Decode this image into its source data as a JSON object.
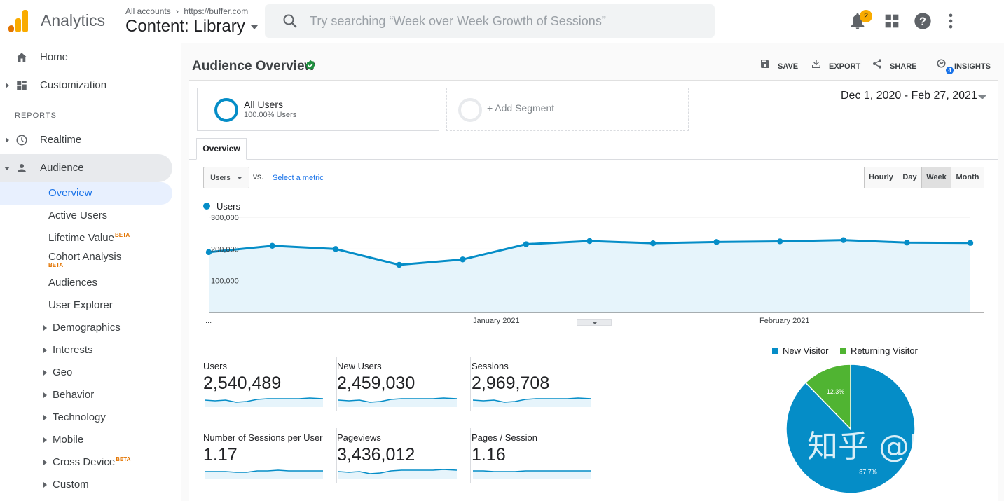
{
  "app": {
    "name": "Analytics",
    "account_crumb": "All accounts",
    "property_crumb": "https://buffer.com",
    "view_title": "Content: Library"
  },
  "search": {
    "placeholder": "Try searching “Week over Week Growth of Sessions”"
  },
  "topbar": {
    "notification_count": "2"
  },
  "sidebar": {
    "home": "Home",
    "customization": "Customization",
    "reports_header": "REPORTS",
    "realtime": "Realtime",
    "audience": "Audience",
    "audience_items": [
      {
        "label": "Overview"
      },
      {
        "label": "Active Users"
      },
      {
        "label": "Lifetime Value",
        "badge": "BETA"
      },
      {
        "label": "Cohort Analysis",
        "badge": "BETA"
      },
      {
        "label": "Audiences"
      },
      {
        "label": "User Explorer"
      },
      {
        "label": "Demographics"
      },
      {
        "label": "Interests"
      },
      {
        "label": "Geo"
      },
      {
        "label": "Behavior"
      },
      {
        "label": "Technology"
      },
      {
        "label": "Mobile"
      },
      {
        "label": "Cross Device",
        "badge": "BETA"
      },
      {
        "label": "Custom"
      }
    ]
  },
  "header": {
    "title": "Audience Overview",
    "save": "SAVE",
    "export": "EXPORT",
    "share": "SHARE",
    "insights": "INSIGHTS",
    "insights_count": "4"
  },
  "segments": {
    "all_users": "All Users",
    "all_users_pct": "100.00% Users",
    "add_segment": "+ Add Segment"
  },
  "date_range": "Dec 1, 2020 - Feb 27, 2021",
  "tabs": {
    "overview": "Overview"
  },
  "controls": {
    "metric": "Users",
    "vs": "vs.",
    "select_metric": "Select a metric",
    "granularity": [
      "Hourly",
      "Day",
      "Week",
      "Month"
    ],
    "selected_granularity": "Week"
  },
  "colors": {
    "series": "#058dc7",
    "fill": "#e6f4fb",
    "new_visitor": "#058dc7",
    "returning_visitor": "#50b432"
  },
  "chart_data": {
    "type": "area",
    "series": [
      {
        "name": "Users",
        "values": [
          190000,
          210000,
          200000,
          150000,
          167000,
          215000,
          225000,
          218000,
          222000,
          224000,
          228000,
          220000,
          219000
        ]
      }
    ],
    "x_labels": [
      "...",
      "January 2021",
      "February 2021"
    ],
    "y_ticks": [
      "300,000",
      "200,000",
      "100,000"
    ],
    "ylim": [
      0,
      300000
    ],
    "grid": true
  },
  "stats": [
    {
      "label": "Users",
      "value": "2,540,489"
    },
    {
      "label": "New Users",
      "value": "2,459,030"
    },
    {
      "label": "Sessions",
      "value": "2,969,708"
    },
    {
      "label": "Number of Sessions per User",
      "value": "1.17"
    },
    {
      "label": "Pageviews",
      "value": "3,436,012"
    },
    {
      "label": "Pages / Session",
      "value": "1.16"
    }
  ],
  "pie_chart": {
    "type": "pie",
    "legend": [
      "New Visitor",
      "Returning Visitor"
    ],
    "values": [
      87.7,
      12.3
    ],
    "labels": [
      "87.7%",
      "12.3%"
    ]
  },
  "watermark": "知乎 @hugo"
}
